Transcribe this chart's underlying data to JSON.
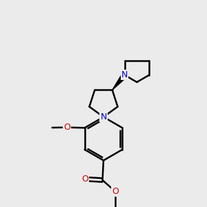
{
  "bg_color": "#ebebeb",
  "bond_color": "#000000",
  "N_color": "#0000cc",
  "O_color": "#cc0000",
  "line_width": 1.8,
  "figsize": [
    3.0,
    3.0
  ],
  "dpi": 100,
  "xlim": [
    0,
    10
  ],
  "ylim": [
    0,
    10
  ]
}
